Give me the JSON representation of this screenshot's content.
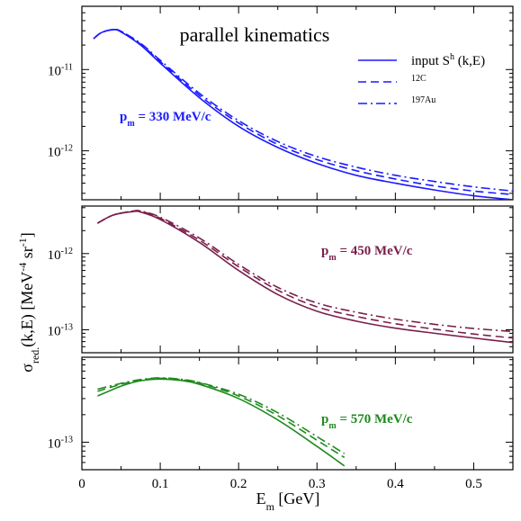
{
  "chart_data": [
    {
      "type": "line",
      "title": "parallel kinematics",
      "annotation": "p_m = 330 MeV/c",
      "color": "#1a1aff",
      "yscale": "log",
      "ylim": [
        2.5e-13,
        6e-11
      ],
      "yticks": [
        {
          "value": 1e-11,
          "label": "10^-11"
        },
        {
          "value": 1e-12,
          "label": "10^-12"
        }
      ],
      "xlim": [
        0,
        0.55
      ],
      "legend": {
        "placement": "top-right",
        "entries": [
          {
            "label": "input S^h (k,E)",
            "style": "solid"
          },
          {
            "label": "^12C",
            "style": "dashed"
          },
          {
            "label": "^197Au",
            "style": "dashdot"
          }
        ]
      },
      "x": [
        0.015,
        0.025,
        0.04,
        0.05,
        0.075,
        0.1,
        0.15,
        0.2,
        0.25,
        0.3,
        0.35,
        0.4,
        0.45,
        0.5,
        0.55
      ],
      "series": [
        {
          "name": "input S^h (k,E)",
          "style": "solid",
          "values": [
            2.4e-11,
            2.85e-11,
            3.1e-11,
            2.9e-11,
            2e-11,
            1.2e-11,
            4.5e-12,
            2e-12,
            1.1e-12,
            7e-13,
            5e-13,
            4e-13,
            3.3e-13,
            2.8e-13,
            2.5e-13
          ]
        },
        {
          "name": "^12C",
          "style": "dashed",
          "values": [
            2.4e-11,
            2.85e-11,
            3.1e-11,
            2.95e-11,
            2.05e-11,
            1.25e-11,
            4.8e-12,
            2.2e-12,
            1.2e-12,
            7.8e-13,
            5.7e-13,
            4.5e-13,
            3.7e-13,
            3.2e-13,
            2.9e-13
          ]
        },
        {
          "name": "^197Au",
          "style": "dashdot",
          "values": [
            2.4e-11,
            2.85e-11,
            3.1e-11,
            2.95e-11,
            2.1e-11,
            1.3e-11,
            5.1e-12,
            2.35e-12,
            1.3e-12,
            8.5e-13,
            6.3e-13,
            5e-13,
            4.2e-13,
            3.6e-13,
            3.2e-13
          ]
        }
      ]
    },
    {
      "type": "line",
      "annotation": "p_m = 450 MeV/c",
      "color": "#7a1f4b",
      "yscale": "log",
      "ylim": [
        5e-14,
        4.2e-12
      ],
      "yticks": [
        {
          "value": 1e-12,
          "label": "10^-12"
        },
        {
          "value": 1e-13,
          "label": "10^-13"
        }
      ],
      "xlim": [
        0,
        0.55
      ],
      "x": [
        0.02,
        0.04,
        0.065,
        0.075,
        0.1,
        0.15,
        0.2,
        0.25,
        0.3,
        0.35,
        0.4,
        0.45,
        0.5,
        0.55
      ],
      "series": [
        {
          "name": "input S^h (k,E)",
          "style": "solid",
          "values": [
            2.5e-12,
            3.2e-12,
            3.55e-12,
            3.5e-12,
            2.8e-12,
            1.4e-12,
            6e-13,
            2.9e-13,
            1.75e-13,
            1.3e-13,
            1.05e-13,
            9e-14,
            7.8e-14,
            6.8e-14
          ]
        },
        {
          "name": "^12C",
          "style": "dashed",
          "values": [
            2.5e-12,
            3.2e-12,
            3.6e-12,
            3.6e-12,
            2.9e-12,
            1.5e-12,
            6.7e-13,
            3.3e-13,
            2e-13,
            1.5e-13,
            1.2e-13,
            1.02e-13,
            8.8e-14,
            7.8e-14
          ]
        },
        {
          "name": "^197Au",
          "style": "dashdot",
          "values": [
            2.5e-12,
            3.2e-12,
            3.6e-12,
            3.6e-12,
            3e-12,
            1.6e-12,
            7.2e-13,
            3.6e-13,
            2.25e-13,
            1.7e-13,
            1.38e-13,
            1.18e-13,
            1.04e-13,
            9.5e-14
          ]
        }
      ]
    },
    {
      "type": "line",
      "annotation": "p_m = 570 MeV/c",
      "color": "#1f8a1f",
      "yscale": "log",
      "ylim": [
        5e-14,
        8.5e-13
      ],
      "yticks": [
        {
          "value": 1e-13,
          "label": "10^-13"
        }
      ],
      "xlim": [
        0,
        0.55
      ],
      "xticks": [
        0,
        0.1,
        0.2,
        0.3,
        0.4,
        0.5
      ],
      "xlabel": "E_m [GeV]",
      "x": [
        0.02,
        0.05,
        0.075,
        0.1,
        0.125,
        0.15,
        0.2,
        0.25,
        0.3,
        0.335
      ],
      "series": [
        {
          "name": "input S^h (k,E)",
          "style": "solid",
          "values": [
            3.2e-13,
            4.1e-13,
            4.7e-13,
            4.9e-13,
            4.75e-13,
            4.3e-13,
            3e-13,
            1.75e-13,
            9e-14,
            5.5e-14
          ]
        },
        {
          "name": "^12C",
          "style": "dashed",
          "values": [
            3.6e-13,
            4.3e-13,
            4.8e-13,
            5e-13,
            4.85e-13,
            4.45e-13,
            3.2e-13,
            1.95e-13,
            1.05e-13,
            6.8e-14
          ]
        },
        {
          "name": "^197Au",
          "style": "dashdot",
          "values": [
            3.8e-13,
            4.4e-13,
            4.85e-13,
            5.05e-13,
            4.9e-13,
            4.5e-13,
            3.35e-13,
            2.1e-13,
            1.15e-13,
            7.5e-14
          ]
        }
      ]
    }
  ],
  "ylabel": "σ_red.(k,E) [MeV^-4 sr^-1]"
}
